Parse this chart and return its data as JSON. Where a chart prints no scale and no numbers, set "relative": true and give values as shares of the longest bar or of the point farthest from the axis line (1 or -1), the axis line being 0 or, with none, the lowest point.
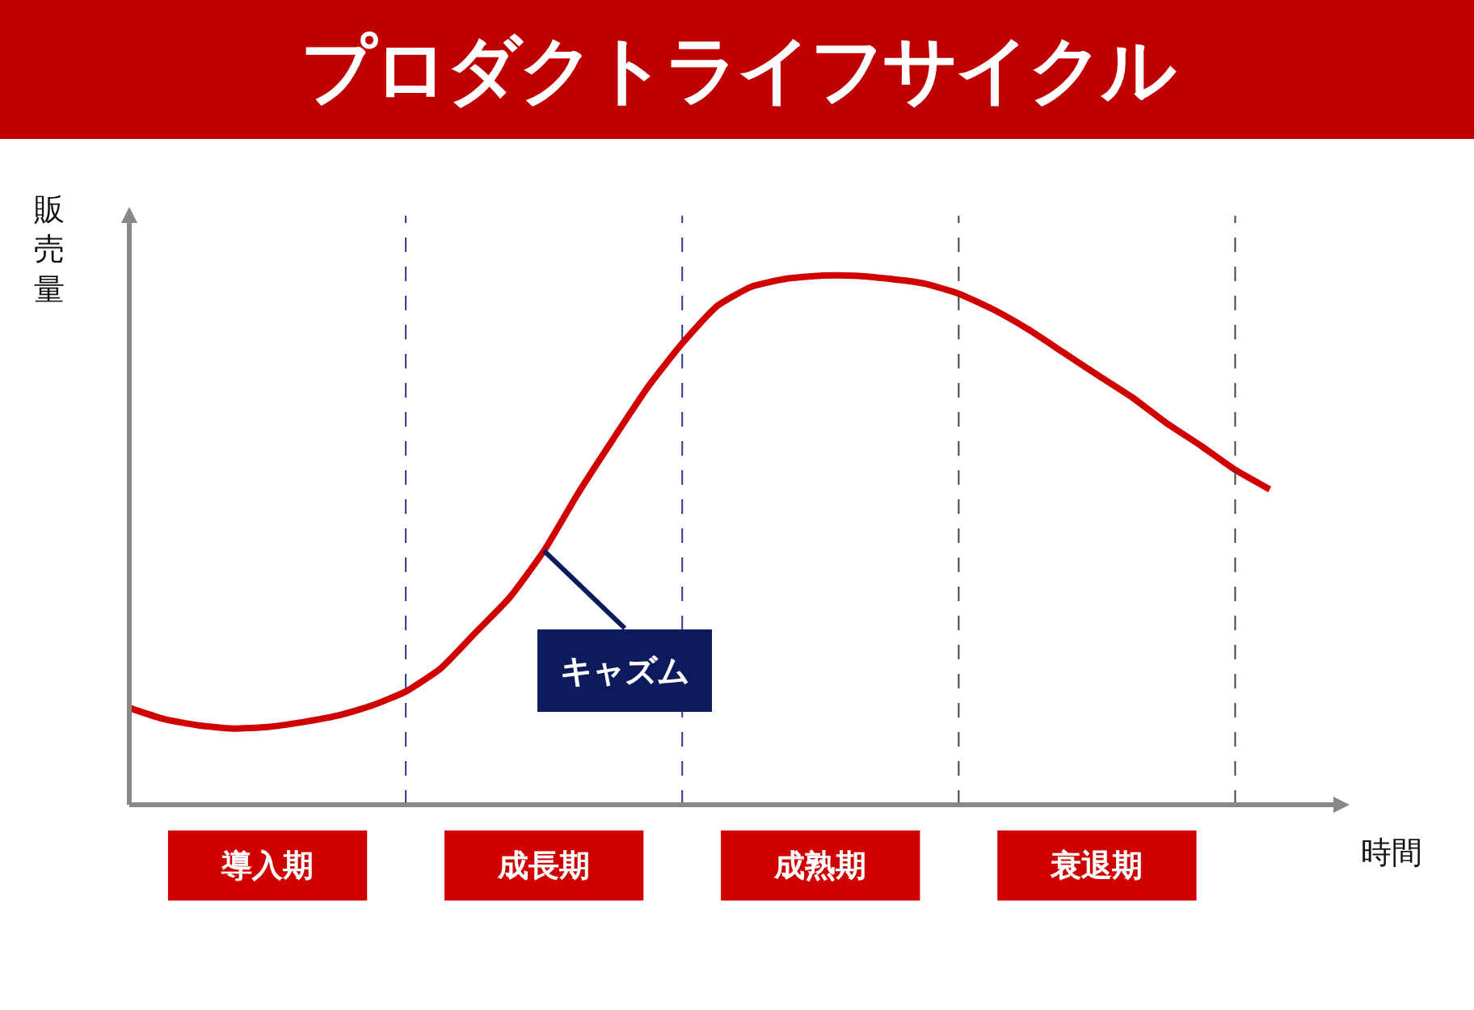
{
  "chart_data": {
    "type": "line",
    "title": "プロダクトライフサイクル",
    "xlabel": "時間",
    "ylabel": "販売量",
    "relative": true,
    "categories": [
      null,
      null,
      null,
      null,
      "導入期",
      null,
      null,
      null,
      null,
      null,
      null,
      null,
      "成長期",
      null,
      null,
      null,
      null,
      null,
      null,
      null,
      "成熟期",
      null,
      null,
      null,
      null,
      null,
      null,
      null,
      "衰退期",
      null,
      null,
      null,
      null,
      null
    ],
    "series": [
      {
        "color": "#d00000",
        "values": [
          0.183,
          0.162,
          0.15,
          0.144,
          0.147,
          0.156,
          0.168,
          0.187,
          0.214,
          0.257,
          0.324,
          0.391,
          0.48,
          0.59,
          0.691,
          0.789,
          0.872,
          0.942,
          0.979,
          0.994,
          1,
          1,
          0.994,
          0.985,
          0.966,
          0.936,
          0.899,
          0.856,
          0.813,
          0.771,
          0.722,
          0.679,
          0.633,
          0.596
        ]
      }
    ],
    "annotations": [
      {
        "text": "キャズム",
        "x": "成長期"
      }
    ],
    "grid": "x",
    "legend": false,
    "line_style": "solid"
  }
}
